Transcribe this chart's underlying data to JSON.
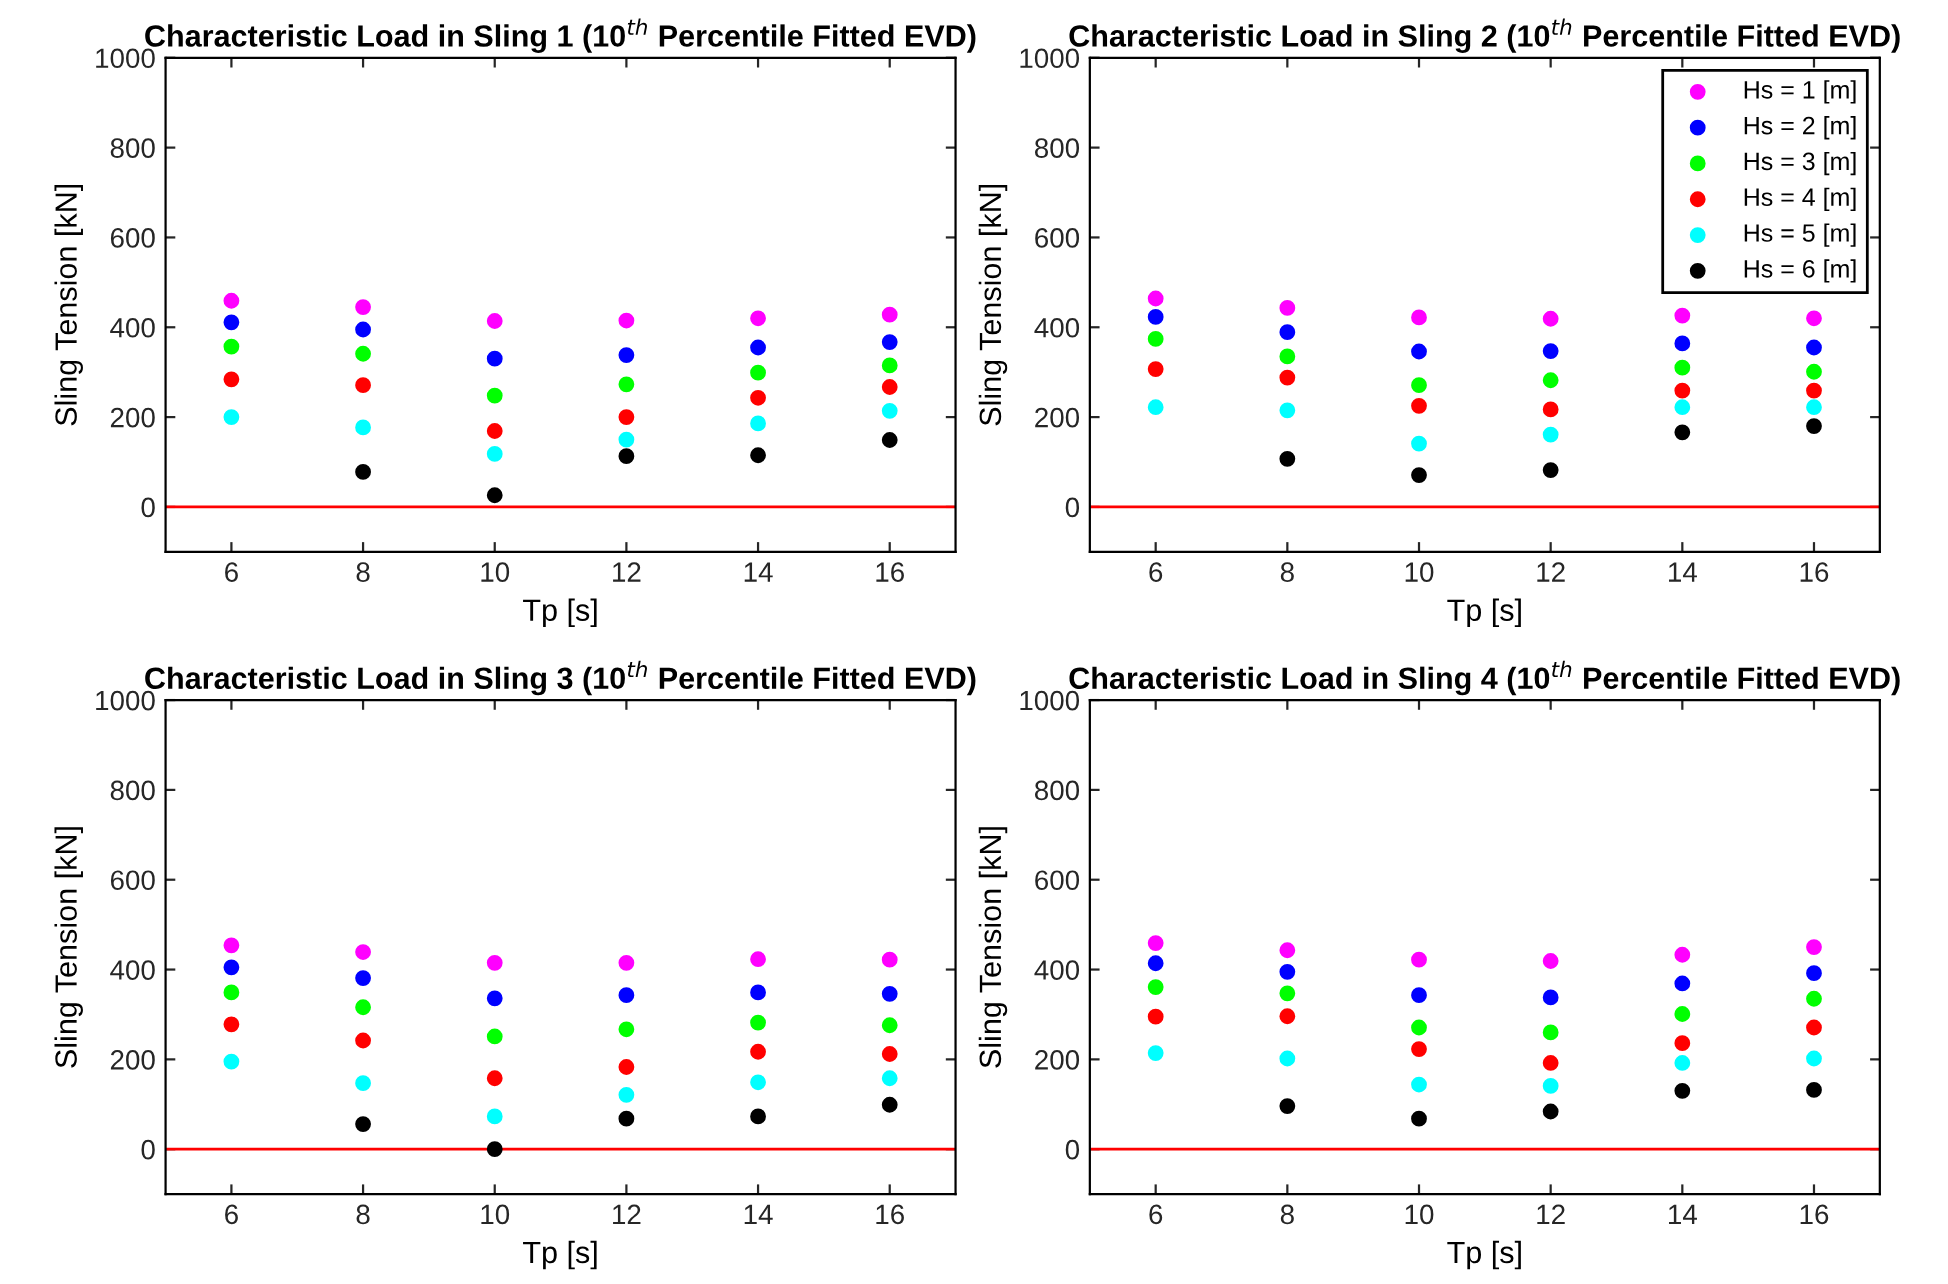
{
  "chart_data": [
    {
      "type": "scatter",
      "title": "Characteristic Load in Sling 1 (10$^{th}$ Percentile Fitted EVD)",
      "xlabel": "Tp [s]",
      "ylabel": "Sling Tension [kN]",
      "x": [
        6,
        8,
        10,
        12,
        14,
        16
      ],
      "xlim": [
        5,
        17
      ],
      "xticks": [
        6,
        8,
        10,
        12,
        14,
        16
      ],
      "ylim": [
        -100,
        1000
      ],
      "yticks": [
        0,
        200,
        400,
        600,
        800,
        1000
      ],
      "marker": "circle",
      "grid": false,
      "legend": false,
      "ref_lines": [
        {
          "axis": "y",
          "value": 0,
          "color": "#ff0000"
        }
      ],
      "series": [
        {
          "color": "#ff00ff",
          "values": [
            459,
            445,
            414,
            415,
            420,
            428
          ]
        },
        {
          "color": "#0000ff",
          "values": [
            411,
            395,
            330,
            338,
            355,
            367
          ]
        },
        {
          "color": "#00ff00",
          "values": [
            357,
            341,
            248,
            273,
            299,
            315
          ]
        },
        {
          "color": "#ff0000",
          "values": [
            284,
            271,
            169,
            200,
            243,
            267
          ]
        },
        {
          "color": "#00ffff",
          "values": [
            200,
            177,
            118,
            150,
            186,
            214
          ]
        },
        {
          "color": "#000000",
          "values": [
            null,
            78,
            26,
            113,
            115,
            149
          ]
        }
      ]
    },
    {
      "type": "scatter",
      "title": "Characteristic Load in Sling 2 (10$^{th}$ Percentile Fitted EVD)",
      "xlabel": "Tp [s]",
      "ylabel": "Sling Tension [kN]",
      "x": [
        6,
        8,
        10,
        12,
        14,
        16
      ],
      "xlim": [
        5,
        17
      ],
      "xticks": [
        6,
        8,
        10,
        12,
        14,
        16
      ],
      "ylim": [
        -100,
        1000
      ],
      "yticks": [
        0,
        200,
        400,
        600,
        800,
        1000
      ],
      "marker": "circle",
      "grid": false,
      "legend": "top right",
      "ref_lines": [
        {
          "axis": "y",
          "value": 0,
          "color": "#ff0000"
        }
      ],
      "series": [
        {
          "name": "Hs = 1 [m]",
          "color": "#ff00ff",
          "values": [
            464,
            443,
            422,
            419,
            426,
            420
          ]
        },
        {
          "name": "Hs = 2 [m]",
          "color": "#0000ff",
          "values": [
            423,
            389,
            346,
            347,
            364,
            355
          ]
        },
        {
          "name": "Hs = 3 [m]",
          "color": "#00ff00",
          "values": [
            374,
            335,
            271,
            282,
            310,
            301
          ]
        },
        {
          "name": "Hs = 4 [m]",
          "color": "#ff0000",
          "values": [
            307,
            288,
            225,
            217,
            259,
            259
          ]
        },
        {
          "name": "Hs = 5 [m]",
          "color": "#00ffff",
          "values": [
            222,
            215,
            141,
            161,
            222,
            222
          ]
        },
        {
          "name": "Hs = 6 [m]",
          "color": "#000000",
          "values": [
            null,
            107,
            71,
            82,
            166,
            180
          ]
        }
      ]
    },
    {
      "type": "scatter",
      "title": "Characteristic Load in Sling 3 (10$^{th}$ Percentile Fitted EVD)",
      "xlabel": "Tp [s]",
      "ylabel": "Sling Tension [kN]",
      "x": [
        6,
        8,
        10,
        12,
        14,
        16
      ],
      "xlim": [
        5,
        17
      ],
      "xticks": [
        6,
        8,
        10,
        12,
        14,
        16
      ],
      "ylim": [
        -100,
        1000
      ],
      "yticks": [
        0,
        200,
        400,
        600,
        800,
        1000
      ],
      "marker": "circle",
      "grid": false,
      "legend": false,
      "ref_lines": [
        {
          "axis": "y",
          "value": 0,
          "color": "#ff0000"
        }
      ],
      "series": [
        {
          "color": "#ff00ff",
          "values": [
            454,
            439,
            415,
            415,
            423,
            422
          ]
        },
        {
          "color": "#0000ff",
          "values": [
            405,
            381,
            336,
            343,
            349,
            346
          ]
        },
        {
          "color": "#00ff00",
          "values": [
            349,
            316,
            251,
            267,
            282,
            276
          ]
        },
        {
          "color": "#ff0000",
          "values": [
            278,
            242,
            158,
            183,
            217,
            212
          ]
        },
        {
          "color": "#00ffff",
          "values": [
            195,
            147,
            73,
            121,
            149,
            158
          ]
        },
        {
          "color": "#000000",
          "values": [
            null,
            56,
            0,
            68,
            73,
            99
          ]
        }
      ]
    },
    {
      "type": "scatter",
      "title": "Characteristic Load in Sling 4 (10$^{th}$ Percentile Fitted EVD)",
      "xlabel": "Tp [s]",
      "ylabel": "Sling Tension [kN]",
      "x": [
        6,
        8,
        10,
        12,
        14,
        16
      ],
      "xlim": [
        5,
        17
      ],
      "xticks": [
        6,
        8,
        10,
        12,
        14,
        16
      ],
      "ylim": [
        -100,
        1000
      ],
      "yticks": [
        0,
        200,
        400,
        600,
        800,
        1000
      ],
      "marker": "circle",
      "grid": false,
      "legend": false,
      "ref_lines": [
        {
          "axis": "y",
          "value": 0,
          "color": "#ff0000"
        }
      ],
      "series": [
        {
          "color": "#ff00ff",
          "values": [
            459,
            443,
            422,
            419,
            433,
            450
          ]
        },
        {
          "color": "#0000ff",
          "values": [
            414,
            395,
            343,
            338,
            369,
            392
          ]
        },
        {
          "color": "#00ff00",
          "values": [
            361,
            347,
            271,
            260,
            301,
            335
          ]
        },
        {
          "color": "#ff0000",
          "values": [
            295,
            296,
            223,
            192,
            236,
            271
          ]
        },
        {
          "color": "#00ffff",
          "values": [
            214,
            202,
            144,
            141,
            192,
            202
          ]
        },
        {
          "color": "#000000",
          "values": [
            null,
            96,
            68,
            84,
            130,
            132
          ]
        }
      ]
    }
  ]
}
